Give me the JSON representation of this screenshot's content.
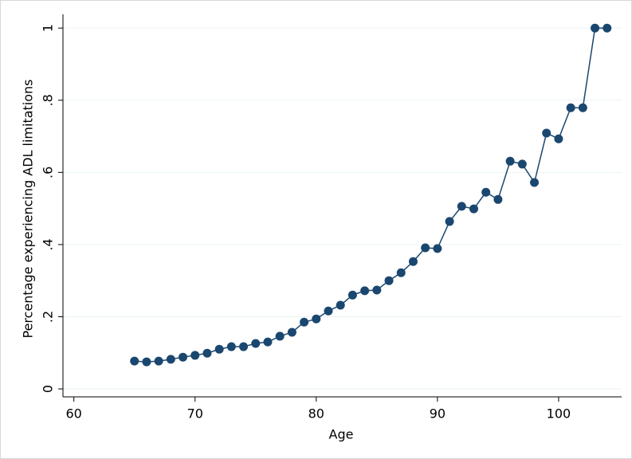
{
  "chart_data": {
    "type": "line",
    "x_label": "Age",
    "y_label": "Percentage experiencing ADL limitations",
    "x": [
      65,
      66,
      67,
      68,
      69,
      70,
      71,
      72,
      73,
      74,
      75,
      76,
      77,
      78,
      79,
      80,
      81,
      82,
      83,
      84,
      85,
      86,
      87,
      88,
      89,
      90,
      91,
      92,
      93,
      94,
      95,
      96,
      97,
      98,
      99,
      100,
      101,
      102,
      103,
      104
    ],
    "series": [
      {
        "color": "#1a476f",
        "values": [
          0.077,
          0.075,
          0.077,
          0.082,
          0.088,
          0.093,
          0.099,
          0.11,
          0.117,
          0.117,
          0.126,
          0.13,
          0.146,
          0.157,
          0.185,
          0.194,
          0.216,
          0.232,
          0.26,
          0.272,
          0.274,
          0.3,
          0.322,
          0.353,
          0.391,
          0.389,
          0.464,
          0.506,
          0.499,
          0.545,
          0.525,
          0.631,
          0.623,
          0.572,
          0.709,
          0.693,
          0.779,
          0.779,
          1.0,
          1.0
        ]
      }
    ],
    "xlim": [
      59.1,
      105.2
    ],
    "xticks": [
      60,
      70,
      80,
      90,
      100
    ],
    "ylim": [
      -0.022,
      1.038
    ],
    "yticks": [
      0,
      {
        "value": 0.2,
        "label": ".2"
      },
      {
        "value": 0.4,
        "label": ".4"
      },
      {
        "value": 0.6,
        "label": ".6"
      },
      {
        "value": 0.8,
        "label": ".8"
      },
      1
    ],
    "grid": true
  }
}
